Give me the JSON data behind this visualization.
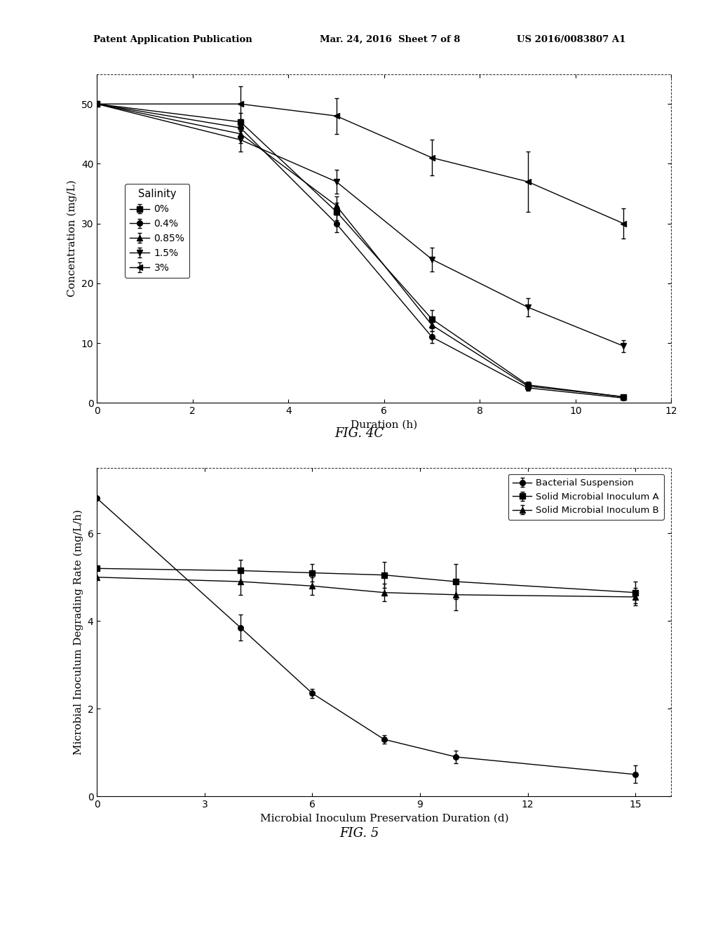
{
  "fig4c": {
    "xlabel": "Duration (h)",
    "ylabel": "Concentration (mg/L)",
    "xlim": [
      0,
      12
    ],
    "ylim": [
      0,
      55
    ],
    "xticks": [
      0,
      2,
      4,
      6,
      8,
      10,
      12
    ],
    "yticks": [
      0,
      10,
      20,
      30,
      40,
      50
    ],
    "legend_title": "Salinity",
    "series": [
      {
        "label": "0%",
        "marker": "s",
        "x": [
          0,
          3,
          5,
          7,
          9,
          11
        ],
        "y": [
          50,
          47,
          32,
          14,
          3,
          1
        ],
        "yerr": [
          0.001,
          1.5,
          1.5,
          1.5,
          0.5,
          0.3
        ],
        "linestyle": "-"
      },
      {
        "label": "0.4%",
        "marker": "o",
        "x": [
          0,
          3,
          5,
          7,
          9,
          11
        ],
        "y": [
          50,
          46,
          30,
          11,
          2.5,
          0.8
        ],
        "yerr": [
          0.001,
          1.5,
          1.5,
          1.0,
          0.5,
          0.3
        ],
        "linestyle": "-"
      },
      {
        "label": "0.85%",
        "marker": "^",
        "x": [
          0,
          3,
          5,
          7,
          9,
          11
        ],
        "y": [
          50,
          45,
          33,
          13,
          2.8,
          1.0
        ],
        "yerr": [
          0.001,
          1.5,
          1.5,
          1.0,
          0.5,
          0.3
        ],
        "linestyle": "-"
      },
      {
        "label": "1.5%",
        "marker": "v",
        "x": [
          0,
          3,
          5,
          7,
          9,
          11
        ],
        "y": [
          50,
          44,
          37,
          24,
          16,
          9.5
        ],
        "yerr": [
          0.001,
          2.0,
          2.0,
          2.0,
          1.5,
          1.0
        ],
        "linestyle": "-"
      },
      {
        "label": "3%",
        "marker": "<",
        "x": [
          0,
          3,
          5,
          7,
          9,
          11
        ],
        "y": [
          50,
          50,
          48,
          41,
          37,
          30
        ],
        "yerr": [
          0.001,
          3.0,
          3.0,
          3.0,
          5.0,
          2.5
        ],
        "linestyle": "-"
      }
    ]
  },
  "fig5": {
    "xlabel": "Microbial Inoculum Preservation Duration (d)",
    "ylabel": "Microbial Inoculum Degrading Rate (mg/L/h)",
    "xlim": [
      0,
      16
    ],
    "ylim": [
      0,
      7.5
    ],
    "xticks": [
      0,
      3,
      6,
      9,
      12,
      15
    ],
    "yticks": [
      0,
      2,
      4,
      6
    ],
    "series": [
      {
        "label": "Bacterial Suspension",
        "marker": "o",
        "x": [
          0,
          4,
          6,
          8,
          10,
          15
        ],
        "y": [
          6.8,
          3.85,
          2.35,
          1.3,
          0.9,
          0.5
        ],
        "yerr": [
          0.001,
          0.3,
          0.1,
          0.1,
          0.15,
          0.2
        ],
        "linestyle": "-"
      },
      {
        "label": "Solid Microbial Inoculum A",
        "marker": "s",
        "x": [
          0,
          4,
          6,
          8,
          10,
          15
        ],
        "y": [
          5.2,
          5.15,
          5.1,
          5.05,
          4.9,
          4.65
        ],
        "yerr": [
          0.001,
          0.25,
          0.2,
          0.3,
          0.4,
          0.25
        ],
        "linestyle": "-"
      },
      {
        "label": "Solid Microbial Inoculum B",
        "marker": "^",
        "x": [
          0,
          4,
          6,
          8,
          10,
          15
        ],
        "y": [
          5.0,
          4.9,
          4.8,
          4.65,
          4.6,
          4.55
        ],
        "yerr": [
          0.001,
          0.3,
          0.2,
          0.2,
          0.35,
          0.2
        ],
        "linestyle": "-"
      }
    ]
  },
  "header_left": "Patent Application Publication",
  "header_mid": "Mar. 24, 2016  Sheet 7 of 8",
  "header_right": "US 2016/0083807 A1",
  "caption4c": "FIG. 4C",
  "caption5": "FIG. 5",
  "background_color": "#ffffff",
  "text_color": "#000000",
  "line_color": "#000000",
  "page_width": 10.24,
  "page_height": 13.2
}
